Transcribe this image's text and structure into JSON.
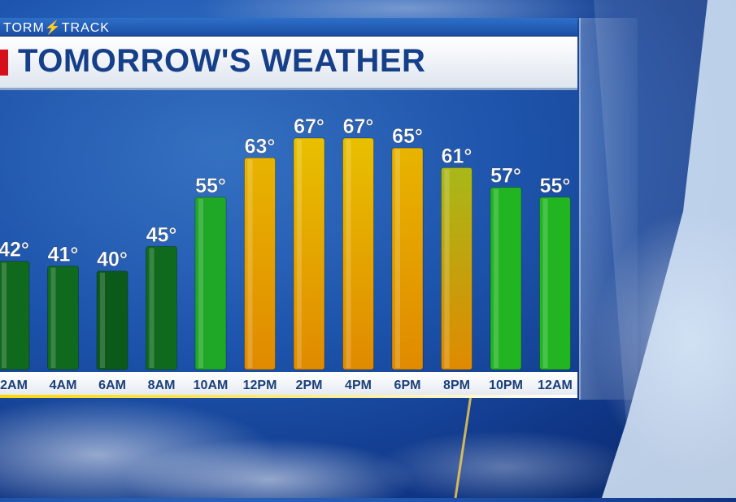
{
  "brand": {
    "name": "TORM",
    "suffix": "TRACK",
    "bolt_icon": "lightning-bolt-icon"
  },
  "title": "TOMORROW'S WEATHER",
  "colors": {
    "title_text": "#163f8a",
    "accent_red": "#d6101a",
    "label_text": "#1a3f7a",
    "value_text": "#ffffff"
  },
  "chart_data": {
    "type": "bar",
    "categories": [
      "2AM",
      "4AM",
      "6AM",
      "8AM",
      "10AM",
      "12PM",
      "2PM",
      "4PM",
      "6PM",
      "8PM",
      "10PM",
      "12AM"
    ],
    "category_labels_shown": [
      "2AM",
      "4AM",
      "6AM",
      "8AM",
      "10AM",
      "12PM",
      "2PM",
      "4PM",
      "6PM",
      "8PM",
      "10PM",
      "12AM"
    ],
    "values": [
      42,
      41,
      40,
      45,
      55,
      63,
      67,
      67,
      65,
      61,
      57,
      55
    ],
    "value_labels": [
      "42°",
      "41°",
      "40°",
      "45°",
      "55°",
      "63°",
      "67°",
      "67°",
      "65°",
      "61°",
      "57°",
      "55°"
    ],
    "unit": "°",
    "title": "TOMORROW'S WEATHER",
    "xlabel": "",
    "ylabel": "",
    "ylim": [
      20,
      72
    ],
    "grid": false,
    "bar_colors": [
      "#0f6a1e",
      "#0f6a1e",
      "#0c5a1a",
      "#0f6a1e",
      "#1fa827",
      "#e8b400",
      "#e8c000",
      "#e8c000",
      "#e8b400",
      "#a8b818",
      "#22b522",
      "#22b522"
    ]
  }
}
